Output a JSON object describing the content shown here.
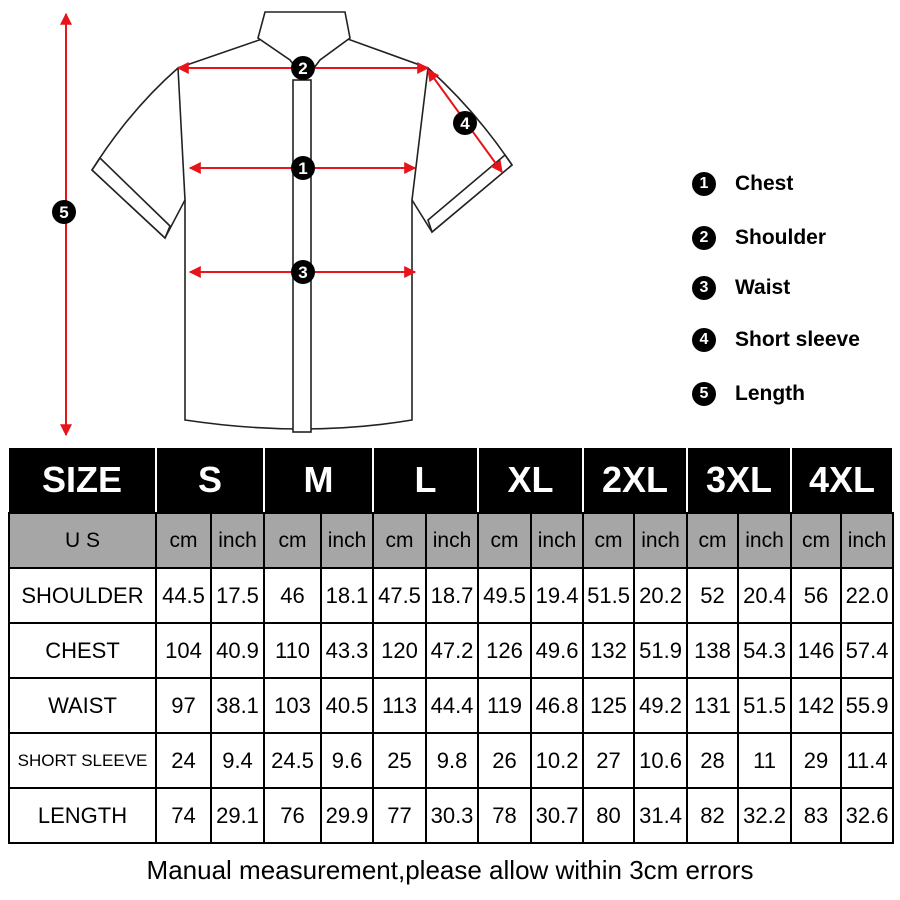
{
  "diagram": {
    "markers": [
      "1",
      "2",
      "3",
      "4",
      "5"
    ],
    "arrow_color": "#e8141b"
  },
  "legend": [
    {
      "num": "1",
      "label": "Chest"
    },
    {
      "num": "2",
      "label": "Shoulder"
    },
    {
      "num": "3",
      "label": "Waist"
    },
    {
      "num": "4",
      "label": "Short sleeve"
    },
    {
      "num": "5",
      "label": "Length"
    }
  ],
  "table": {
    "size_header": "SIZE",
    "sizes": [
      "S",
      "M",
      "L",
      "XL",
      "2XL",
      "3XL",
      "4XL"
    ],
    "units_label": "U S",
    "unit_cm": "cm",
    "unit_inch": "inch",
    "rows": [
      {
        "label": "SHOULDER",
        "values": [
          "44.5",
          "17.5",
          "46",
          "18.1",
          "47.5",
          "18.7",
          "49.5",
          "19.4",
          "51.5",
          "20.2",
          "52",
          "20.4",
          "56",
          "22.0"
        ]
      },
      {
        "label": "CHEST",
        "values": [
          "104",
          "40.9",
          "110",
          "43.3",
          "120",
          "47.2",
          "126",
          "49.6",
          "132",
          "51.9",
          "138",
          "54.3",
          "146",
          "57.4"
        ]
      },
      {
        "label": "WAIST",
        "values": [
          "97",
          "38.1",
          "103",
          "40.5",
          "113",
          "44.4",
          "119",
          "46.8",
          "125",
          "49.2",
          "131",
          "51.5",
          "142",
          "55.9"
        ]
      },
      {
        "label": "SHORT SLEEVE",
        "values": [
          "24",
          "9.4",
          "24.5",
          "9.6",
          "25",
          "9.8",
          "26",
          "10.2",
          "27",
          "10.6",
          "28",
          "11",
          "29",
          "11.4"
        ]
      },
      {
        "label": "LENGTH",
        "values": [
          "74",
          "29.1",
          "76",
          "29.9",
          "77",
          "30.3",
          "78",
          "30.7",
          "80",
          "31.4",
          "82",
          "32.2",
          "83",
          "32.6"
        ]
      }
    ]
  },
  "footer": "Manual measurement,please allow within 3cm errors"
}
